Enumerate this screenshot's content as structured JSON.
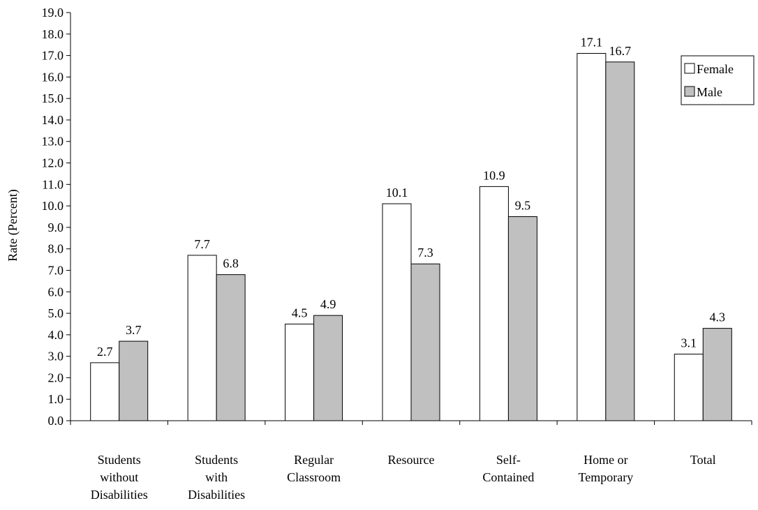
{
  "chart_data": {
    "type": "bar",
    "title": "",
    "xlabel": "",
    "ylabel": "Rate (Percent)",
    "ylim": [
      0,
      19
    ],
    "ytick_step": 1,
    "ytick_labels": [
      "0.0",
      "1.0",
      "2.0",
      "3.0",
      "4.0",
      "5.0",
      "6.0",
      "7.0",
      "8.0",
      "9.0",
      "10.0",
      "11.0",
      "12.0",
      "13.0",
      "14.0",
      "15.0",
      "16.0",
      "17.0",
      "18.0",
      "19.0"
    ],
    "categories": [
      [
        "Students",
        "without",
        "Disabilities"
      ],
      [
        "Students",
        "with",
        "Disabilities"
      ],
      [
        "Regular",
        "Classroom"
      ],
      [
        "Resource"
      ],
      [
        "Self-",
        "Contained"
      ],
      [
        "Home or",
        "Temporary"
      ],
      [
        "Total"
      ]
    ],
    "series": [
      {
        "name": "Female",
        "color": "#ffffff",
        "values": [
          2.7,
          7.7,
          4.5,
          10.1,
          10.9,
          17.1,
          3.1
        ],
        "value_labels": [
          "2.7",
          "7.7",
          "4.5",
          "10.1",
          "10.9",
          "17.1",
          "3.1"
        ]
      },
      {
        "name": "Male",
        "color": "#c0c0c0",
        "values": [
          3.7,
          6.8,
          4.9,
          7.3,
          9.5,
          16.7,
          4.3
        ],
        "value_labels": [
          "3.7",
          "6.8",
          "4.9",
          "7.3",
          "9.5",
          "16.7",
          "4.3"
        ]
      }
    ],
    "grid": false,
    "legend_position": "top-right"
  }
}
